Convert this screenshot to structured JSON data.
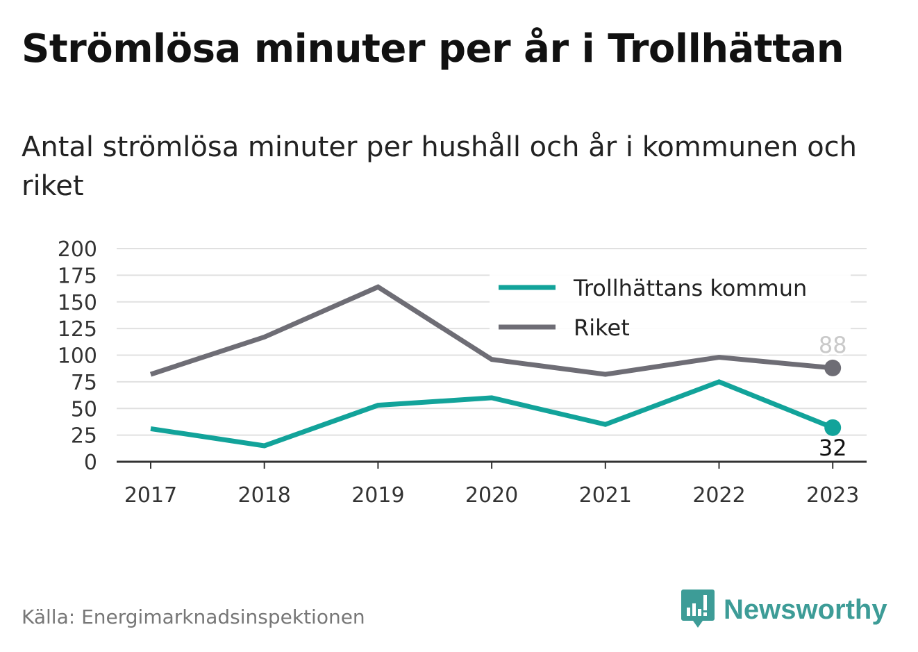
{
  "title": "Strömlösa minuter per år i Trollhättan",
  "subtitle": "Antal strömlösa minuter per hushåll och år i kommunen och riket",
  "source": "Källa: Energimarknadsinspektionen",
  "brand": {
    "name": "Newsworthy",
    "icon": "newsworthy-logo-icon",
    "color": "#3d9c97"
  },
  "colors": {
    "kommun": "#12a39a",
    "riket": "#6e6d75",
    "grid": "#e0e0e0",
    "axis": "#333333"
  },
  "chart_data": {
    "type": "line",
    "title": "Strömlösa minuter per år i Trollhättan",
    "subtitle": "Antal strömlösa minuter per hushåll och år i kommunen och riket",
    "x": [
      "2017",
      "2018",
      "2019",
      "2020",
      "2021",
      "2022",
      "2023"
    ],
    "ylim": [
      0,
      200
    ],
    "yticks": [
      0,
      25,
      50,
      75,
      100,
      125,
      150,
      175,
      200
    ],
    "grid": true,
    "legend": "top-right",
    "series": [
      {
        "name": "Trollhättans kommun",
        "color": "#12a39a",
        "values": [
          31,
          15,
          53,
          60,
          35,
          75,
          32
        ],
        "end_label": "32"
      },
      {
        "name": "Riket",
        "color": "#6e6d75",
        "values": [
          82,
          117,
          164,
          96,
          82,
          98,
          88
        ],
        "end_label": "88"
      }
    ]
  }
}
